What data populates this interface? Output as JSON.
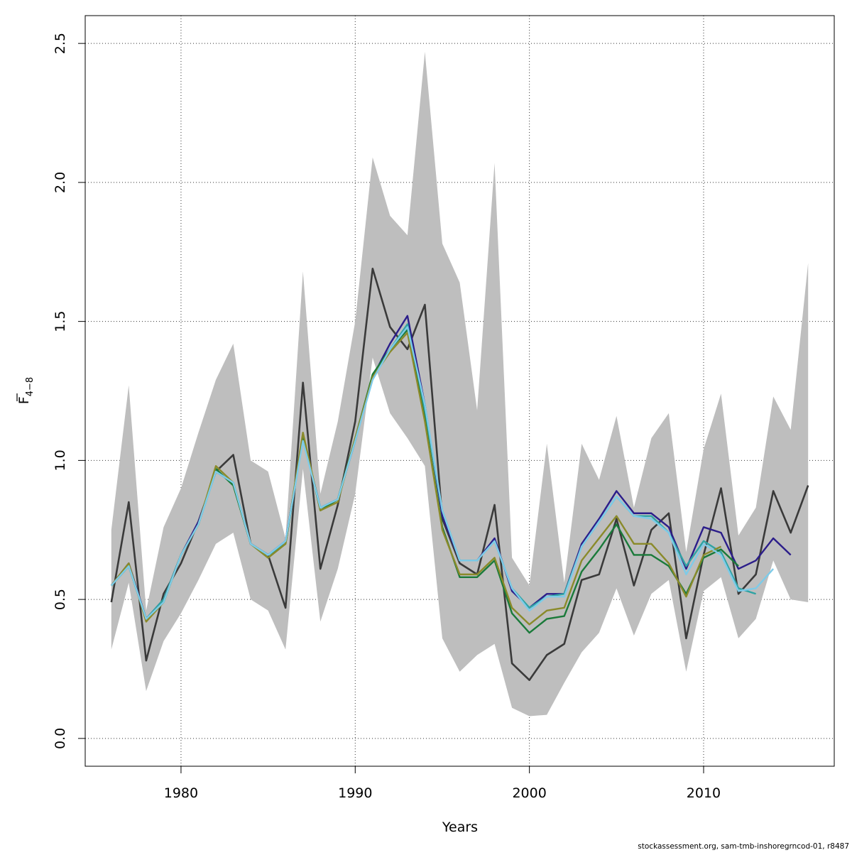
{
  "chart_data": {
    "type": "line",
    "xlabel": "Years",
    "ylabel": "F",
    "ylabel_subscript": "4−8",
    "ylim": [
      -0.1,
      2.6
    ],
    "xlim": [
      1974.5,
      2017.5
    ],
    "x_ticks": [
      1980,
      1990,
      2000,
      2010
    ],
    "y_ticks": [
      "0.0",
      "0.5",
      "1.0",
      "1.5",
      "2.0",
      "2.5"
    ],
    "grid": true,
    "footer": "stockassessment.org, sam-tmb-inshoregrncod-01, r8487",
    "colors": {
      "band": "#bebebe",
      "main": "#3a3a3a",
      "retro_1": "#2b1d8a",
      "retro_2": "#2fa3a3",
      "retro_3": "#1a7a3a",
      "retro_4": "#8a8a2a",
      "retro_5": "#7ecbe8"
    },
    "years": [
      1976,
      1977,
      1978,
      1979,
      1980,
      1981,
      1982,
      1983,
      1984,
      1985,
      1986,
      1987,
      1988,
      1989,
      1990,
      1991,
      1992,
      1993,
      1994,
      1995,
      1996,
      1997,
      1998,
      1999,
      2000,
      2001,
      2002,
      2003,
      2004,
      2005,
      2006,
      2007,
      2008,
      2009,
      2010,
      2011,
      2012,
      2013,
      2014,
      2015,
      2016
    ],
    "band_upper": [
      0.75,
      1.27,
      0.46,
      0.76,
      0.9,
      1.1,
      1.29,
      1.42,
      1.0,
      0.96,
      0.72,
      1.68,
      0.88,
      1.14,
      1.5,
      2.09,
      1.88,
      1.81,
      2.47,
      1.78,
      1.64,
      1.18,
      2.07,
      0.65,
      0.55,
      1.06,
      0.56,
      1.06,
      0.93,
      1.16,
      0.83,
      1.08,
      1.17,
      0.67,
      1.04,
      1.24,
      0.73,
      0.83,
      1.23,
      1.11,
      1.71
    ],
    "band_lower": [
      0.32,
      0.56,
      0.17,
      0.35,
      0.45,
      0.57,
      0.7,
      0.74,
      0.5,
      0.46,
      0.32,
      0.97,
      0.42,
      0.61,
      0.88,
      1.37,
      1.17,
      1.08,
      0.98,
      0.36,
      0.24,
      0.3,
      0.34,
      0.11,
      0.08,
      0.085,
      0.2,
      0.31,
      0.38,
      0.54,
      0.37,
      0.52,
      0.57,
      0.24,
      0.53,
      0.58,
      0.36,
      0.43,
      0.64,
      0.5,
      0.49
    ],
    "series": [
      {
        "name": "",
        "color_key": "main",
        "values": [
          0.49,
          0.85,
          0.28,
          0.52,
          0.63,
          0.78,
          0.96,
          1.02,
          0.7,
          0.66,
          0.47,
          1.28,
          0.61,
          0.84,
          1.14,
          1.69,
          1.48,
          1.4,
          1.56,
          0.79,
          0.63,
          0.59,
          0.84,
          0.27,
          0.21,
          0.3,
          0.34,
          0.57,
          0.59,
          0.79,
          0.55,
          0.75,
          0.81,
          0.36,
          0.66,
          0.9,
          0.52,
          0.59,
          0.89,
          0.74,
          0.91
        ]
      },
      {
        "name": "",
        "color_key": "retro_1",
        "values": [
          0.55,
          0.63,
          0.43,
          0.5,
          0.66,
          0.78,
          0.96,
          0.92,
          0.7,
          0.66,
          0.71,
          1.08,
          0.83,
          0.86,
          1.07,
          1.3,
          1.42,
          1.52,
          1.2,
          0.8,
          0.64,
          0.64,
          0.72,
          0.53,
          0.47,
          0.52,
          0.52,
          0.7,
          0.79,
          0.89,
          0.81,
          0.81,
          0.76,
          0.61,
          0.76,
          0.74,
          0.61,
          0.64,
          0.72,
          0.66
        ]
      },
      {
        "name": "",
        "color_key": "retro_2",
        "values": [
          0.55,
          0.62,
          0.43,
          0.5,
          0.66,
          0.77,
          0.96,
          0.92,
          0.7,
          0.66,
          0.7,
          1.08,
          0.83,
          0.86,
          1.07,
          1.3,
          1.4,
          1.49,
          1.18,
          0.82,
          0.64,
          0.64,
          0.71,
          0.54,
          0.47,
          0.51,
          0.52,
          0.69,
          0.78,
          0.87,
          0.8,
          0.8,
          0.74,
          0.62,
          0.71,
          0.67,
          0.54,
          0.52
        ]
      },
      {
        "name": "",
        "color_key": "retro_3",
        "values": [
          0.55,
          0.62,
          0.43,
          0.49,
          0.66,
          0.77,
          0.97,
          0.91,
          0.7,
          0.65,
          0.7,
          1.09,
          0.82,
          0.86,
          1.08,
          1.31,
          1.4,
          1.47,
          1.15,
          0.76,
          0.58,
          0.58,
          0.64,
          0.45,
          0.38,
          0.43,
          0.44,
          0.6,
          0.68,
          0.77,
          0.66,
          0.66,
          0.62,
          0.52,
          0.65,
          0.68,
          0.62
        ]
      },
      {
        "name": "",
        "color_key": "retro_4",
        "values": [
          0.55,
          0.63,
          0.42,
          0.49,
          0.66,
          0.77,
          0.98,
          0.92,
          0.7,
          0.65,
          0.7,
          1.1,
          0.82,
          0.85,
          1.08,
          1.3,
          1.39,
          1.46,
          1.14,
          0.75,
          0.59,
          0.59,
          0.65,
          0.47,
          0.41,
          0.46,
          0.47,
          0.64,
          0.72,
          0.8,
          0.7,
          0.7,
          0.63,
          0.51,
          0.66,
          0.69
        ]
      },
      {
        "name": "",
        "color_key": "retro_5",
        "values": [
          0.55,
          0.62,
          0.43,
          0.49,
          0.66,
          0.77,
          0.96,
          0.92,
          0.7,
          0.66,
          0.71,
          1.07,
          0.83,
          0.86,
          1.07,
          1.29,
          1.4,
          1.48,
          1.2,
          0.82,
          0.64,
          0.64,
          0.71,
          0.54,
          0.46,
          0.51,
          0.51,
          0.69,
          0.78,
          0.87,
          0.8,
          0.79,
          0.74,
          0.59,
          0.7,
          0.66,
          0.53,
          0.54,
          0.61
        ]
      }
    ]
  }
}
